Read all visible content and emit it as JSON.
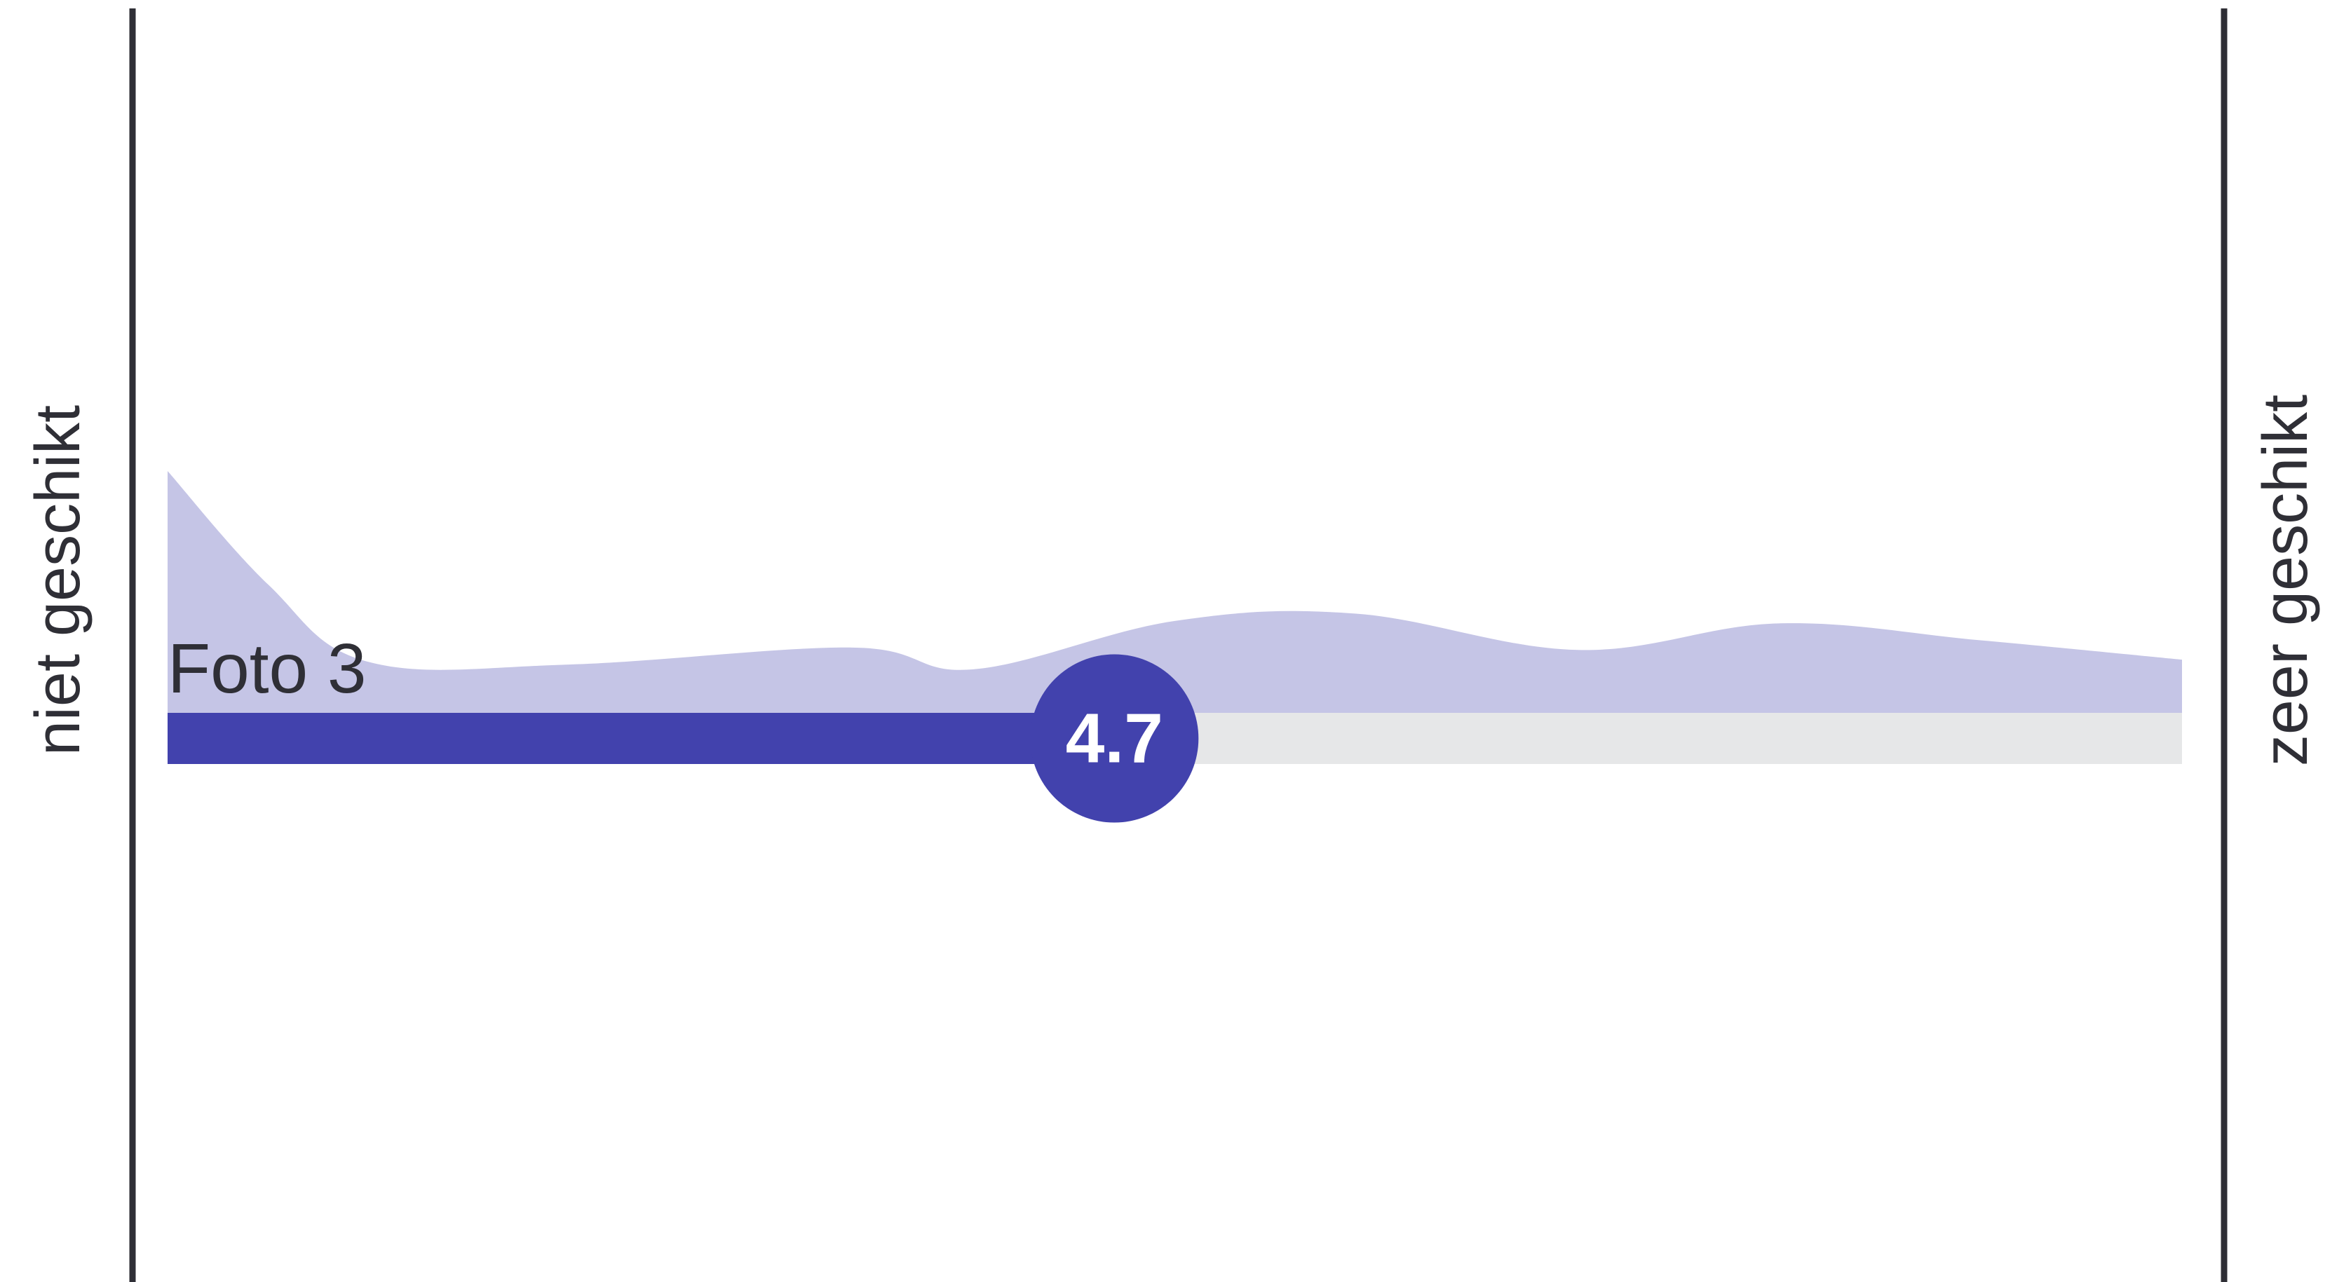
{
  "colors": {
    "accent": "#4242ad",
    "distribution_fill": "#c5c5e6",
    "track": "#e6e7e8",
    "axis_line": "#2f2f36",
    "label_text": "#2f2f36",
    "badge_text": "#ffffff"
  },
  "chart_data": {
    "type": "area",
    "scale_min_label": "niet geschikt",
    "scale_max_label": "zeer geschikt",
    "item_label": "Foto 3",
    "score": 4.7,
    "score_label": "4.7",
    "xlim": [
      0,
      10
    ],
    "distribution": {
      "x": [
        0,
        0.5,
        1.0,
        2.0,
        3.4,
        4.0,
        5.0,
        5.9,
        7.0,
        8.0,
        9.0,
        10.0
      ],
      "density": [
        1.0,
        0.53,
        0.21,
        0.2,
        0.27,
        0.18,
        0.38,
        0.41,
        0.26,
        0.37,
        0.3,
        0.22
      ]
    },
    "grid": false,
    "legend": "none"
  }
}
